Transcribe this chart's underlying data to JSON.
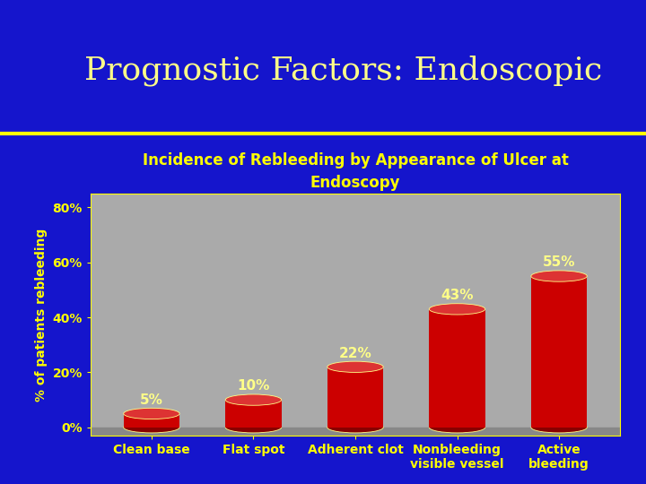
{
  "title": "Prognostic Factors: Endoscopic",
  "subtitle_line1": "Incidence of Rebleeding by Appearance of Ulcer at",
  "subtitle_line2": "Endoscopy",
  "categories": [
    "Clean base",
    "Flat spot",
    "Adherent clot",
    "Nonbleeding\nvisible vessel",
    "Active\nbleeding"
  ],
  "values": [
    5,
    10,
    22,
    43,
    55
  ],
  "bar_color_body": "#CC0000",
  "bar_color_top": "#DD3333",
  "bar_color_shadow": "#880000",
  "bar_edge_color": "#FFFF88",
  "ylabel": "% of patients rebleeding",
  "yticks": [
    0,
    20,
    40,
    60,
    80
  ],
  "ytick_labels": [
    "0%",
    "20%",
    "40%",
    "60%",
    "80%"
  ],
  "ylim": [
    0,
    85
  ],
  "background_slide": "#1515CC",
  "background_plot": "#AAAAAA",
  "floor_color": "#888888",
  "title_color": "#FFFF88",
  "subtitle_color": "#FFFF00",
  "ylabel_color": "#FFFF00",
  "tick_color": "#FFFF00",
  "value_label_color": "#FFFF88",
  "xlabel_color": "#FFFF00",
  "separator_color": "#FFFF00",
  "title_fontsize": 26,
  "subtitle_fontsize": 12,
  "ylabel_fontsize": 10,
  "tick_fontsize": 10,
  "value_label_fontsize": 11,
  "xlabel_fontsize": 10
}
